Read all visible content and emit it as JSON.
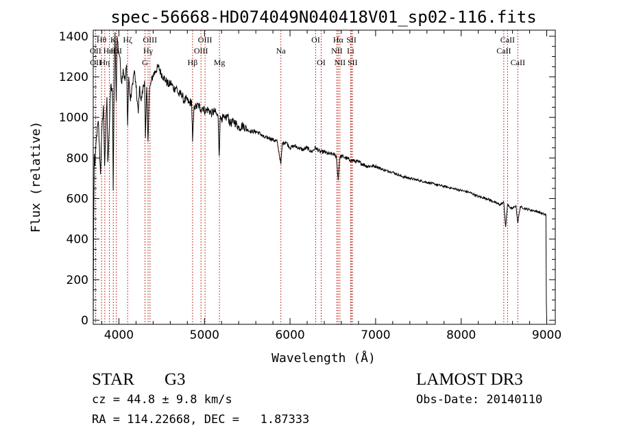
{
  "chart_data": {
    "type": "line",
    "title": "spec-56668-HD074049N040418V01_sp02-116.fits",
    "xlabel": "Wavelength (Å)",
    "ylabel": "Flux (relative)",
    "xlim": [
      3700,
      9100
    ],
    "ylim": [
      -20,
      1430
    ],
    "xticks": [
      4000,
      5000,
      6000,
      7000,
      8000,
      9000
    ],
    "xtick_labels": [
      "4000",
      "5000",
      "6000",
      "7000",
      "8000",
      "9000"
    ],
    "yticks": [
      0,
      200,
      400,
      600,
      800,
      1000,
      1200,
      1400
    ],
    "ytick_labels": [
      "0",
      "200",
      "400",
      "600",
      "800",
      "1000",
      "1200",
      "1400"
    ],
    "grid": false,
    "series": [
      {
        "name": "flux",
        "x": [
          3700,
          3705,
          3712,
          3720,
          3735,
          3760,
          3785,
          3800,
          3820,
          3833,
          3845,
          3860,
          3870,
          3889,
          3905,
          3925,
          3933,
          3945,
          3955,
          3968,
          3980,
          3995,
          4010,
          4030,
          4050,
          4070,
          4090,
          4102,
          4115,
          4135,
          4160,
          4180,
          4200,
          4226,
          4240,
          4260,
          4280,
          4300,
          4310,
          4325,
          4340,
          4355,
          4380,
          4400,
          4430,
          4460,
          4490,
          4520,
          4550,
          4580,
          4610,
          4640,
          4670,
          4700,
          4730,
          4760,
          4790,
          4820,
          4850,
          4861,
          4880,
          4900,
          4930,
          4957,
          4980,
          5007,
          5040,
          5080,
          5120,
          5160,
          5172,
          5183,
          5200,
          5240,
          5270,
          5300,
          5350,
          5400,
          5450,
          5500,
          5550,
          5600,
          5650,
          5700,
          5750,
          5800,
          5850,
          5893,
          5910,
          5950,
          6000,
          6050,
          6100,
          6150,
          6200,
          6250,
          6300,
          6350,
          6400,
          6450,
          6500,
          6540,
          6563,
          6580,
          6600,
          6650,
          6700,
          6750,
          6800,
          6900,
          7000,
          7100,
          7200,
          7300,
          7400,
          7500,
          7600,
          7700,
          7800,
          7900,
          8000,
          8100,
          8200,
          8300,
          8400,
          8450,
          8498,
          8520,
          8542,
          8560,
          8600,
          8640,
          8662,
          8690,
          8750,
          8800,
          8850,
          8900,
          8950,
          8990,
          8995,
          9000
        ],
        "values": [
          0,
          480,
          820,
          760,
          890,
          980,
          720,
          930,
          1060,
          760,
          920,
          1100,
          780,
          960,
          1160,
          1120,
          640,
          1180,
          1420,
          1080,
          1400,
          1330,
          1300,
          1170,
          1240,
          1180,
          1260,
          960,
          1200,
          1080,
          1170,
          1230,
          1150,
          1020,
          1150,
          1080,
          1140,
          1180,
          900,
          1150,
          880,
          1130,
          1180,
          1210,
          1230,
          1250,
          1220,
          1200,
          1180,
          1160,
          1170,
          1140,
          1150,
          1110,
          1120,
          1080,
          1090,
          1070,
          1080,
          880,
          1060,
          1050,
          1060,
          1040,
          1050,
          1030,
          1040,
          1020,
          1030,
          1000,
          810,
          990,
          1000,
          990,
          1010,
          970,
          980,
          950,
          960,
          940,
          930,
          930,
          920,
          900,
          900,
          890,
          880,
          770,
          870,
          880,
          850,
          860,
          850,
          840,
          850,
          830,
          850,
          830,
          830,
          820,
          820,
          810,
          690,
          800,
          810,
          800,
          790,
          785,
          780,
          760,
          760,
          740,
          730,
          710,
          700,
          690,
          680,
          670,
          660,
          650,
          640,
          630,
          610,
          600,
          580,
          570,
          580,
          460,
          570,
          560,
          550,
          565,
          480,
          560,
          550,
          545,
          540,
          535,
          525,
          520,
          100,
          0
        ]
      }
    ],
    "line_annotations": [
      {
        "label": "Hθ",
        "wavelength": 3797,
        "row": 1
      },
      {
        "label": "OII",
        "wavelength": 3727,
        "row": 2
      },
      {
        "label": "OII",
        "wavelength": 3729,
        "row": 3
      },
      {
        "label": "K",
        "wavelength": 3934,
        "row": 1
      },
      {
        "label": "HeI",
        "wavelength": 3889,
        "row": 2
      },
      {
        "label": "Hη",
        "wavelength": 3835,
        "row": 3
      },
      {
        "label": "Hζ",
        "wavelength": 4102,
        "row": 1
      },
      {
        "label": "HII",
        "wavelength": 3970,
        "row": 2
      },
      {
        "label": "OIII",
        "wavelength": 4363,
        "row": 1
      },
      {
        "label": "Hγ",
        "wavelength": 4341,
        "row": 2
      },
      {
        "label": "G",
        "wavelength": 4305,
        "row": 3
      },
      {
        "label": "OIII",
        "wavelength": 5007,
        "row": 1
      },
      {
        "label": "OIII",
        "wavelength": 4959,
        "row": 2
      },
      {
        "label": "Hβ",
        "wavelength": 4861,
        "row": 3
      },
      {
        "label": "Mg",
        "wavelength": 5175,
        "row": 3
      },
      {
        "label": "Na",
        "wavelength": 5893,
        "row": 2
      },
      {
        "label": "OI",
        "wavelength": 6300,
        "row": 1
      },
      {
        "label": "OI",
        "wavelength": 6364,
        "row": 3
      },
      {
        "label": "Hα",
        "wavelength": 6563,
        "row": 1
      },
      {
        "label": "NII",
        "wavelength": 6548,
        "row": 2
      },
      {
        "label": "NII",
        "wavelength": 6583,
        "row": 3
      },
      {
        "label": "SII",
        "wavelength": 6717,
        "row": 1
      },
      {
        "label": "Li",
        "wavelength": 6708,
        "row": 2
      },
      {
        "label": "SII",
        "wavelength": 6731,
        "row": 3
      },
      {
        "label": "CaII",
        "wavelength": 8542,
        "row": 1
      },
      {
        "label": "CaII",
        "wavelength": 8498,
        "row": 2
      },
      {
        "label": "CaII",
        "wavelength": 8662,
        "row": 3
      }
    ],
    "colors": {
      "spectrum": "#000000",
      "line_markers": "#c0392b",
      "axes": "#000000"
    }
  },
  "footer": {
    "object_class": "STAR",
    "subclass": "G3",
    "survey": "LAMOST DR3",
    "redshift_text": "cz = 44.8 ± 9.8 km/s",
    "obs_date": "Obs-Date: 20140110",
    "coordinates": "RA = 114.22668, DEC =   1.87333"
  }
}
